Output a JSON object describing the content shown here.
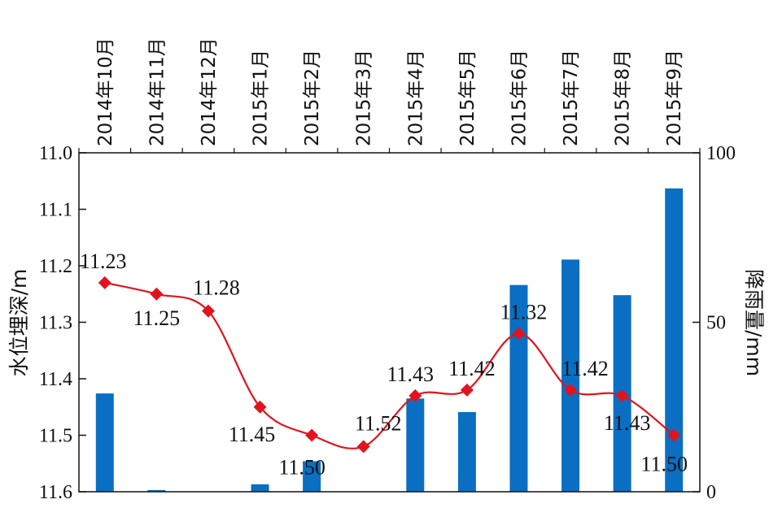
{
  "chart_data": {
    "type": "bar+line",
    "categories": [
      "2014年10月",
      "2014年11月",
      "2014年12月",
      "2015年1月",
      "2015年2月",
      "2015年3月",
      "2015年4月",
      "2015年5月",
      "2015年6月",
      "2015年7月",
      "2015年8月",
      "2015年9月"
    ],
    "ylabel_left": "水位埋深/m",
    "ylabel_right": "降雨量/mm",
    "left_axis": {
      "ylim": [
        11.0,
        11.6
      ],
      "ticks": [
        "11.0",
        "11.1",
        "11.2",
        "11.3",
        "11.4",
        "11.5",
        "11.6"
      ],
      "inverted": true
    },
    "right_axis": {
      "ylim": [
        0,
        100
      ],
      "ticks": [
        "0",
        "50",
        "100"
      ]
    },
    "series": [
      {
        "kind": "bar",
        "axis": "right",
        "color": "#0a6fc2",
        "values": [
          29,
          0.5,
          0,
          2.2,
          9,
          0,
          27.5,
          23.5,
          61,
          68.5,
          58,
          89.5
        ]
      },
      {
        "kind": "line",
        "axis": "left",
        "color": "#e0141e",
        "marker": "diamond",
        "values": [
          11.23,
          11.25,
          11.28,
          11.45,
          11.5,
          11.52,
          11.43,
          11.42,
          11.32,
          11.42,
          11.43,
          11.5
        ],
        "labels": [
          "11.23",
          "11.25",
          "11.28",
          "11.45",
          "11.50",
          "11.52",
          "11.43",
          "11.42",
          "11.32",
          "11.42",
          "11.43",
          "11.50"
        ]
      }
    ],
    "grid": false
  }
}
